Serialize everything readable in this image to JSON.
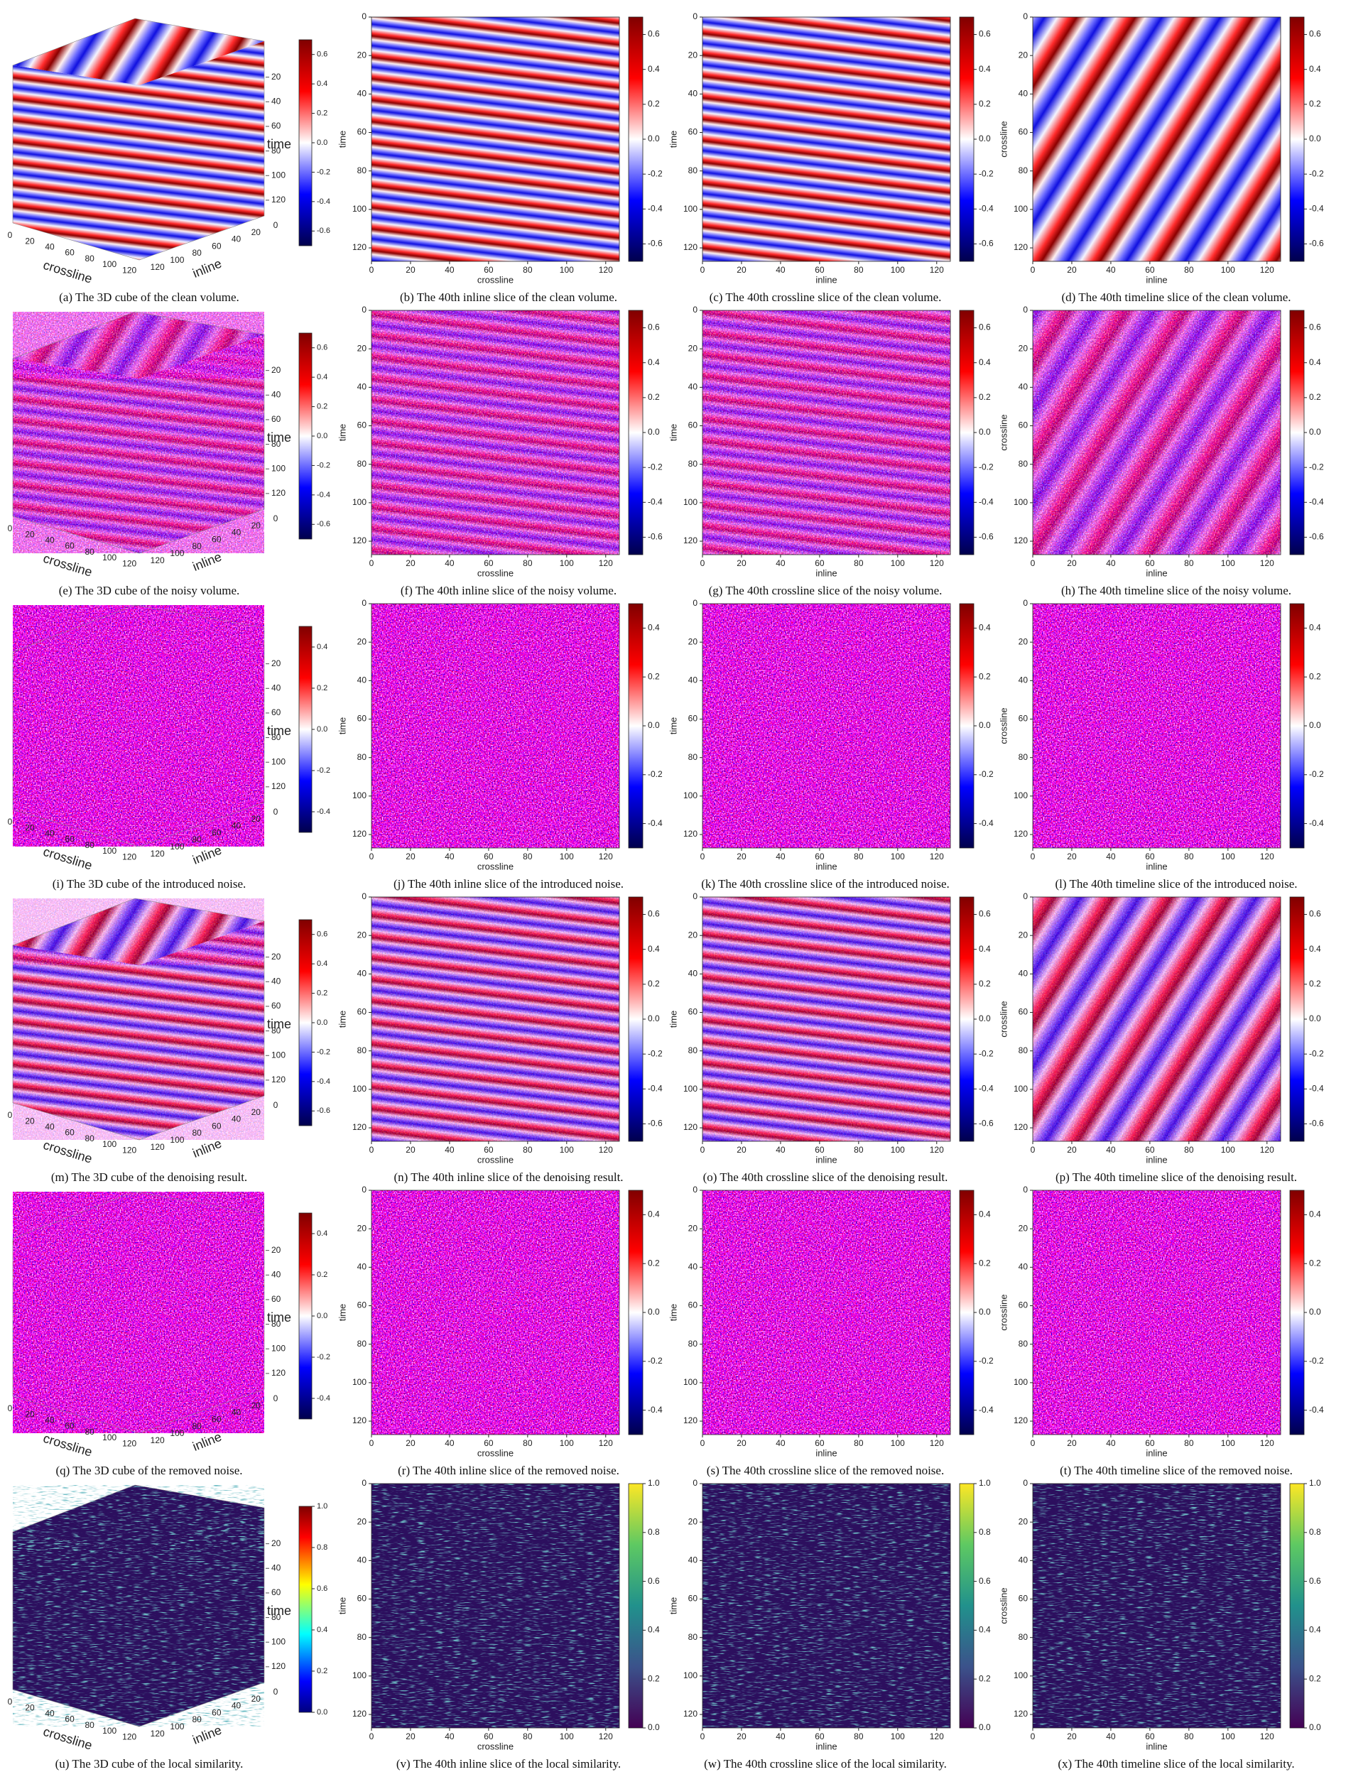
{
  "figure": {
    "slice_lim": [
      0,
      127
    ],
    "slice_ticks": [
      0,
      20,
      40,
      60,
      80,
      100,
      120
    ],
    "cube_lim": [
      0,
      127
    ],
    "cube_ticks": [
      0,
      20,
      40,
      60,
      80,
      100,
      120
    ],
    "cube_time_ticks": [
      20,
      40,
      60,
      80,
      100,
      120
    ]
  },
  "rows": [
    {
      "texture": "clean",
      "colormap": "seismic",
      "cube_colormap": "seismic",
      "clim": [
        -0.7,
        0.7
      ],
      "colorbar_ticks": [
        -0.6,
        -0.4,
        -0.2,
        {
          "value": 0,
          "label": "0.0"
        },
        0.2,
        0.4,
        0.6
      ],
      "panels": [
        {
          "caption": "(a) The 3D cube of the clean volume.",
          "x_label": "crossline",
          "y_label": "inline",
          "z_label": "time"
        },
        {
          "caption": "(b) The 40th inline slice of the clean volume.",
          "x_label": "crossline",
          "y_label": "time"
        },
        {
          "caption": "(c) The 40th crossline slice of the clean volume.",
          "x_label": "inline",
          "y_label": "time"
        },
        {
          "caption": "(d) The 40th timeline slice of the clean volume.",
          "x_label": "inline",
          "y_label": "crossline"
        }
      ]
    },
    {
      "texture": "noisy",
      "colormap": "seismic",
      "cube_colormap": "seismic",
      "clim": [
        -0.7,
        0.7
      ],
      "colorbar_ticks": [
        -0.6,
        -0.4,
        -0.2,
        {
          "value": 0,
          "label": "0.0"
        },
        0.2,
        0.4,
        0.6
      ],
      "panels": [
        {
          "caption": "(e) The 3D cube of the noisy volume.",
          "x_label": "crossline",
          "y_label": "inline",
          "z_label": "time"
        },
        {
          "caption": "(f) The 40th inline slice of the noisy volume.",
          "x_label": "crossline",
          "y_label": "time"
        },
        {
          "caption": "(g) The 40th crossline slice of the noisy volume.",
          "x_label": "inline",
          "y_label": "time"
        },
        {
          "caption": "(h) The 40th timeline slice of the noisy volume.",
          "x_label": "inline",
          "y_label": "crossline"
        }
      ]
    },
    {
      "texture": "noise",
      "colormap": "seismic",
      "cube_colormap": "seismic",
      "clim": [
        -0.5,
        0.5
      ],
      "colorbar_ticks": [
        -0.4,
        -0.2,
        {
          "value": 0,
          "label": "0.0"
        },
        0.2,
        0.4
      ],
      "panels": [
        {
          "caption": "(i) The 3D cube of the introduced noise.",
          "x_label": "crossline",
          "y_label": "inline",
          "z_label": "time"
        },
        {
          "caption": "(j) The 40th inline slice of the introduced noise.",
          "x_label": "crossline",
          "y_label": "time"
        },
        {
          "caption": "(k) The 40th crossline slice of the introduced noise.",
          "x_label": "inline",
          "y_label": "time"
        },
        {
          "caption": "(l) The 40th timeline slice of the introduced noise.",
          "x_label": "inline",
          "y_label": "crossline"
        }
      ]
    },
    {
      "texture": "denoised",
      "colormap": "seismic",
      "cube_colormap": "seismic",
      "clim": [
        -0.7,
        0.7
      ],
      "colorbar_ticks": [
        -0.6,
        -0.4,
        -0.2,
        {
          "value": 0,
          "label": "0.0"
        },
        0.2,
        0.4,
        0.6
      ],
      "panels": [
        {
          "caption": "(m) The 3D cube of the denoising result.",
          "x_label": "crossline",
          "y_label": "inline",
          "z_label": "time"
        },
        {
          "caption": "(n) The 40th inline slice of the denoising result.",
          "x_label": "crossline",
          "y_label": "time"
        },
        {
          "caption": "(o) The 40th crossline slice of the denoising result.",
          "x_label": "inline",
          "y_label": "time"
        },
        {
          "caption": "(p) The 40th timeline slice of the denoising result.",
          "x_label": "inline",
          "y_label": "crossline"
        }
      ]
    },
    {
      "texture": "noise",
      "colormap": "seismic",
      "cube_colormap": "seismic",
      "clim": [
        -0.5,
        0.5
      ],
      "colorbar_ticks": [
        -0.4,
        -0.2,
        {
          "value": 0,
          "label": "0.0"
        },
        0.2,
        0.4
      ],
      "panels": [
        {
          "caption": "(q) The 3D cube of the removed noise.",
          "x_label": "crossline",
          "y_label": "inline",
          "z_label": "time"
        },
        {
          "caption": "(r) The 40th inline slice of the removed noise.",
          "x_label": "crossline",
          "y_label": "time"
        },
        {
          "caption": "(s) The 40th crossline slice of the removed noise.",
          "x_label": "inline",
          "y_label": "time"
        },
        {
          "caption": "(t) The 40th timeline slice of the removed noise.",
          "x_label": "inline",
          "y_label": "crossline"
        }
      ]
    },
    {
      "texture": "similarity",
      "colormap": "viridis",
      "cube_colormap": "jet",
      "clim": [
        0,
        1
      ],
      "colorbar_ticks": [
        {
          "value": 0,
          "label": "0.0"
        },
        0.2,
        0.4,
        0.6,
        0.8,
        {
          "value": 1,
          "label": "1.0"
        }
      ],
      "panels": [
        {
          "caption": "(u) The 3D cube of the local similarity.",
          "x_label": "crossline",
          "y_label": "inline",
          "z_label": "time"
        },
        {
          "caption": "(v) The 40th inline slice of the local similarity.",
          "x_label": "crossline",
          "y_label": "time"
        },
        {
          "caption": "(w) The 40th crossline slice of the local similarity.",
          "x_label": "inline",
          "y_label": "time"
        },
        {
          "caption": "(x) The 40th timeline slice of the local similarity.",
          "x_label": "inline",
          "y_label": "crossline"
        }
      ]
    }
  ]
}
